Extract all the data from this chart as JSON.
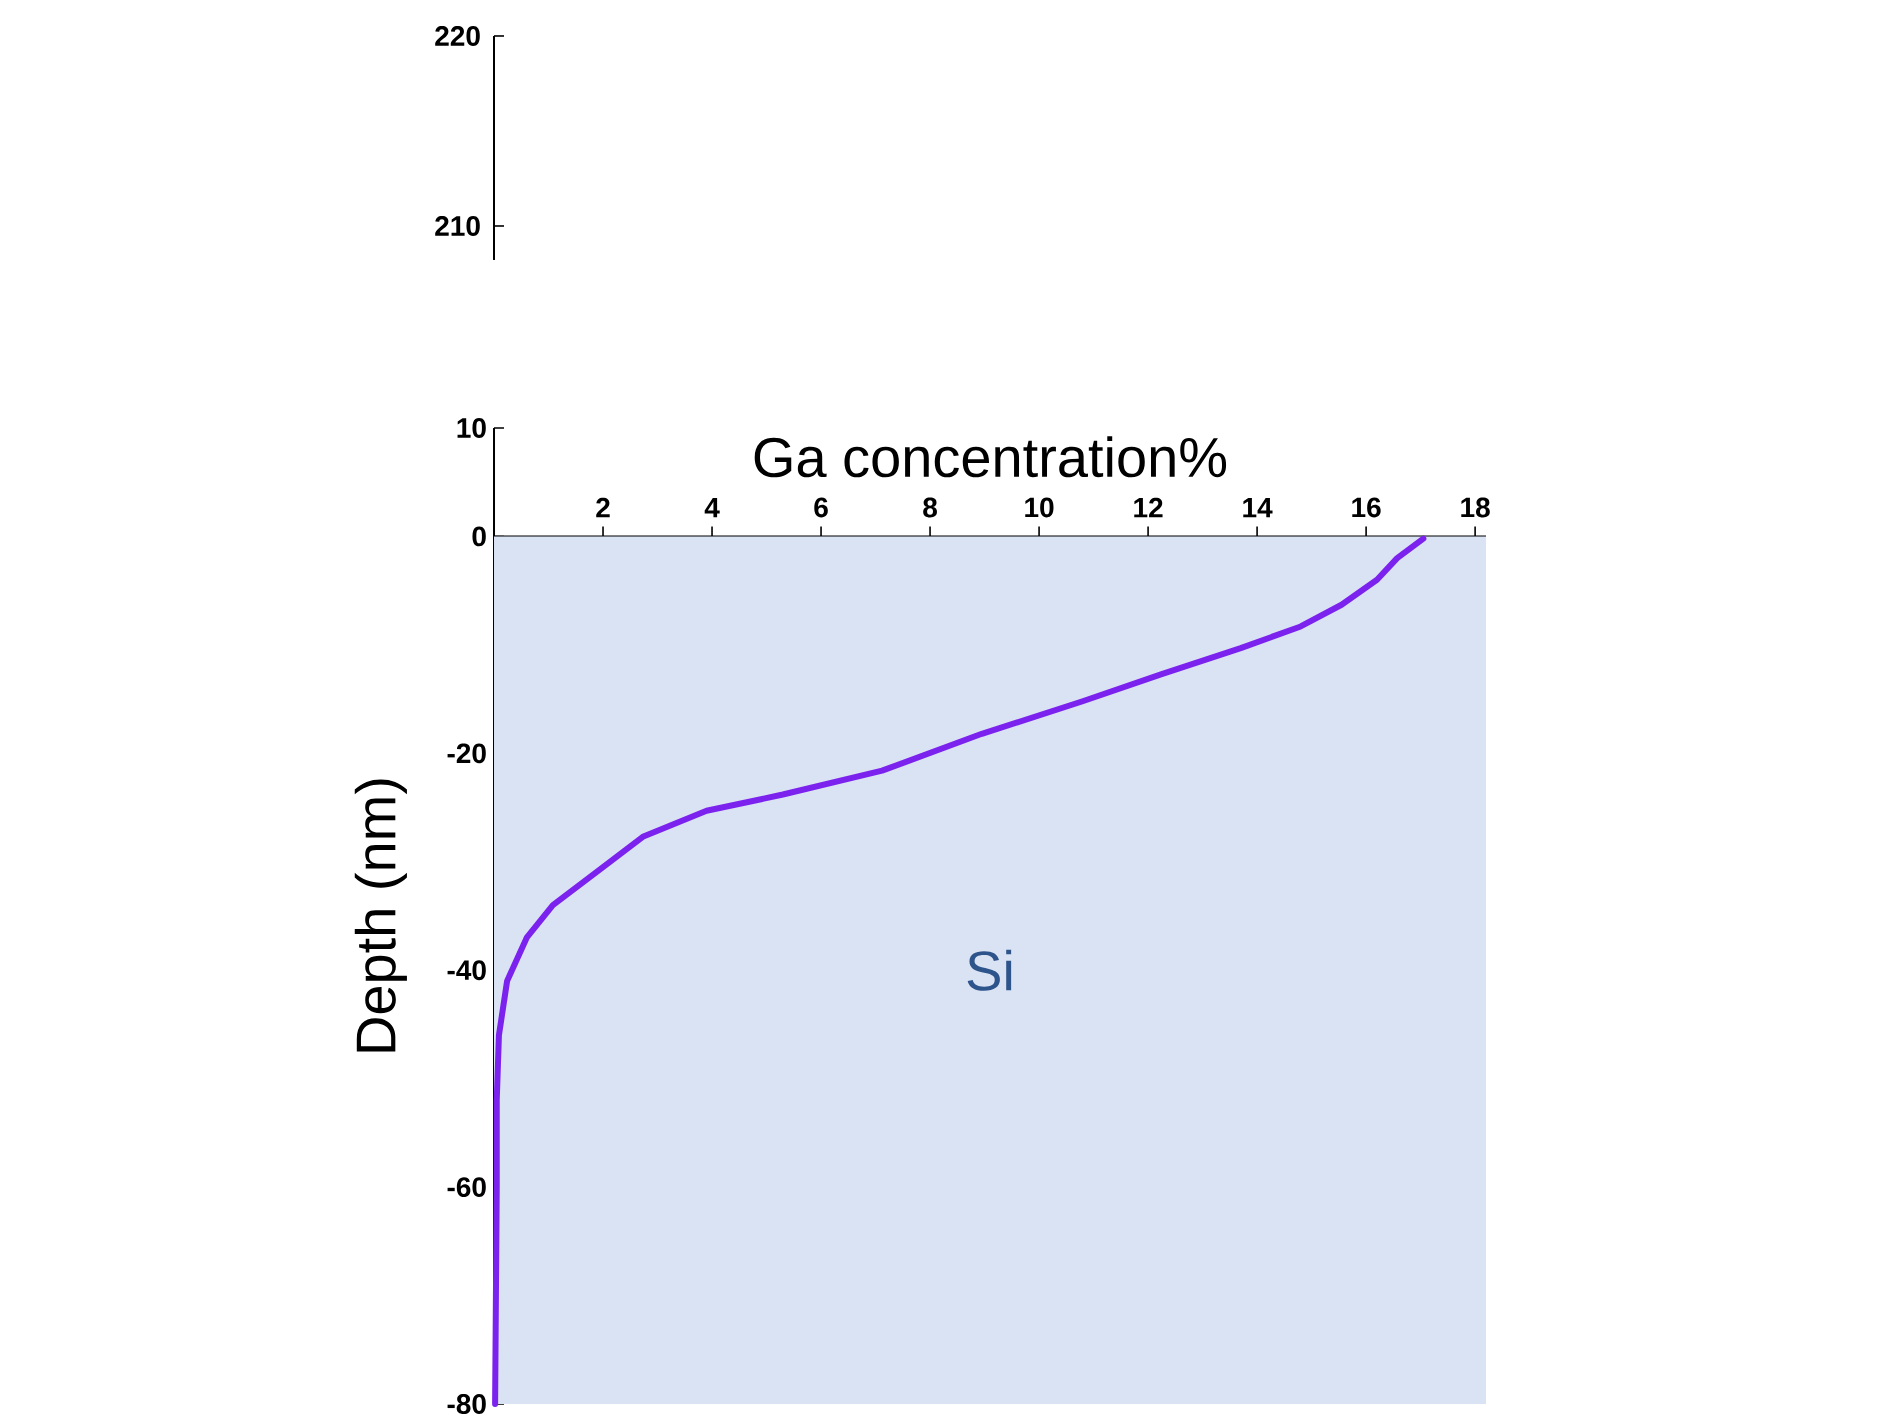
{
  "chart_data": {
    "type": "line",
    "xlabel": "Ga concentration%",
    "ylabel": "Depth (nm)",
    "xlim": [
      0,
      18.2
    ],
    "xticks": [
      2,
      4,
      6,
      8,
      10,
      12,
      14,
      16,
      18
    ],
    "ylim": [
      -80,
      10
    ],
    "yticks": [
      -80,
      -60,
      -40,
      -20,
      0,
      10
    ],
    "marker": "none",
    "line_style": "solid",
    "annotations": [
      "210",
      "220"
    ],
    "bands": [
      {
        "axis": "y",
        "from": -80,
        "to": 0,
        "label": "Si",
        "color": "#dae3f3"
      }
    ],
    "series": [
      {
        "color": "#7b22ee",
        "x": [
          17.05,
          16.57,
          16.2,
          15.55,
          14.8,
          13.7,
          12.25,
          10.8,
          8.95,
          7.12,
          5.3,
          3.9,
          2.73,
          2.0,
          1.08,
          0.6,
          0.24,
          0.09,
          0.05,
          0.05,
          0.02
        ],
        "values": [
          -0.2,
          -2,
          -4,
          -6.3,
          -8.3,
          -10.3,
          -12.7,
          -15.2,
          -18.2,
          -21.6,
          -23.8,
          -25.3,
          -27.7,
          -30.5,
          -34,
          -37,
          -41,
          -46,
          -52,
          -60,
          -80
        ]
      }
    ]
  }
}
